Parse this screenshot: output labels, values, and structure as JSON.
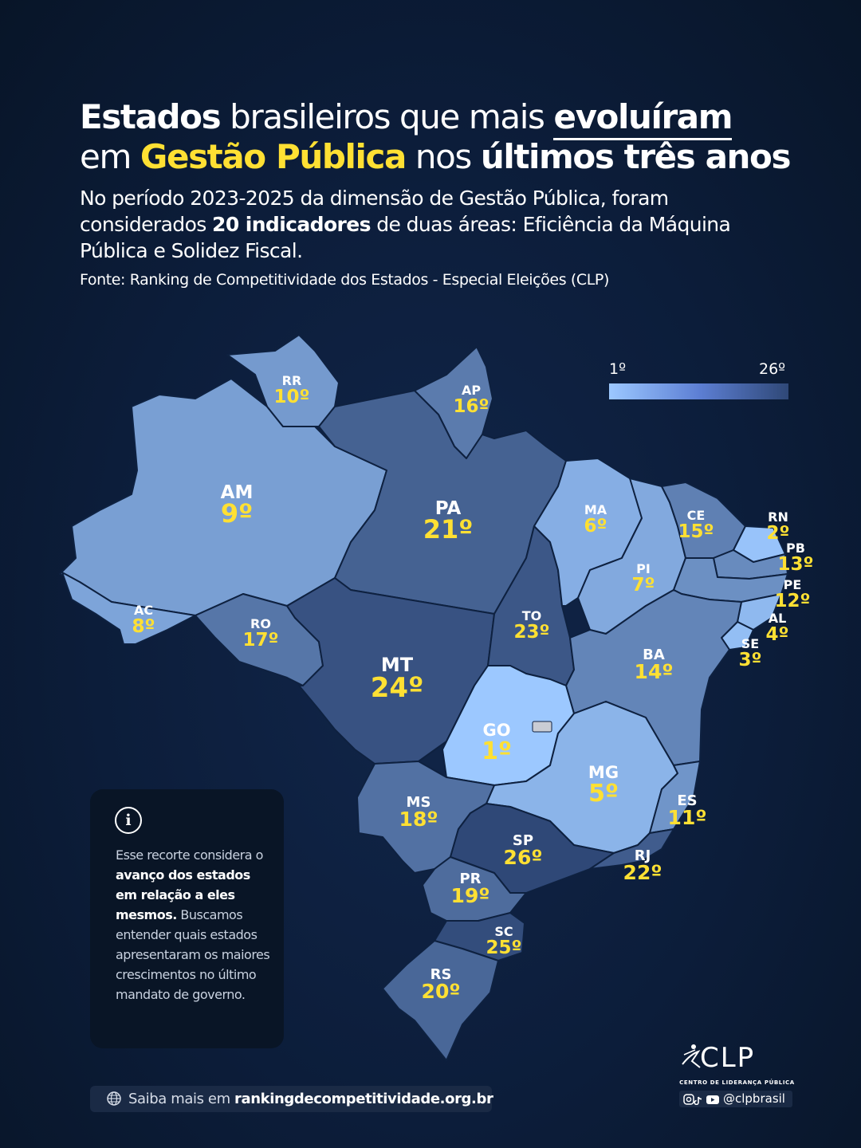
{
  "title": {
    "w1": "Estados",
    "w2": " brasileiros que mais ",
    "w3": "evoluíram",
    "w4": "em ",
    "w5": "Gestão Pública",
    "w6": " nos ",
    "w7": "últimos três anos"
  },
  "subtitle": {
    "p1": "No período 2023-2025 da dimensão de Gestão Pública, foram considerados ",
    "p2": "20 indicadores",
    "p3": " de duas áreas: Eficiência da Máquina Pública e Solidez Fiscal."
  },
  "source": "Fonte: Ranking de Competitividade dos Estados - Especial Eleições (CLP)",
  "legend": {
    "min_label": "1º",
    "max_label": "26º",
    "color_low": "#9cc8ff",
    "color_high": "#2f4877"
  },
  "states": [
    {
      "abbr": "RR",
      "rank": "10º",
      "rank_value": 10
    },
    {
      "abbr": "AP",
      "rank": "16º",
      "rank_value": 16
    },
    {
      "abbr": "AM",
      "rank": "9º",
      "rank_value": 9
    },
    {
      "abbr": "PA",
      "rank": "21º",
      "rank_value": 21
    },
    {
      "abbr": "MA",
      "rank": "6º",
      "rank_value": 6
    },
    {
      "abbr": "CE",
      "rank": "15º",
      "rank_value": 15
    },
    {
      "abbr": "RN",
      "rank": "2º",
      "rank_value": 2
    },
    {
      "abbr": "PB",
      "rank": "13º",
      "rank_value": 13
    },
    {
      "abbr": "PE",
      "rank": "12º",
      "rank_value": 12
    },
    {
      "abbr": "AL",
      "rank": "4º",
      "rank_value": 4
    },
    {
      "abbr": "SE",
      "rank": "3º",
      "rank_value": 3
    },
    {
      "abbr": "PI",
      "rank": "7º",
      "rank_value": 7
    },
    {
      "abbr": "AC",
      "rank": "8º",
      "rank_value": 8
    },
    {
      "abbr": "RO",
      "rank": "17º",
      "rank_value": 17
    },
    {
      "abbr": "TO",
      "rank": "23º",
      "rank_value": 23
    },
    {
      "abbr": "MT",
      "rank": "24º",
      "rank_value": 24
    },
    {
      "abbr": "BA",
      "rank": "14º",
      "rank_value": 14
    },
    {
      "abbr": "GO",
      "rank": "1º",
      "rank_value": 1
    },
    {
      "abbr": "MG",
      "rank": "5º",
      "rank_value": 5
    },
    {
      "abbr": "ES",
      "rank": "11º",
      "rank_value": 11
    },
    {
      "abbr": "MS",
      "rank": "18º",
      "rank_value": 18
    },
    {
      "abbr": "SP",
      "rank": "26º",
      "rank_value": 26
    },
    {
      "abbr": "RJ",
      "rank": "22º",
      "rank_value": 22
    },
    {
      "abbr": "PR",
      "rank": "19º",
      "rank_value": 19
    },
    {
      "abbr": "SC",
      "rank": "25º",
      "rank_value": 25
    },
    {
      "abbr": "RS",
      "rank": "20º",
      "rank_value": 20
    }
  ],
  "info": {
    "icon": "info-icon",
    "t1": "Esse recorte considera o ",
    "t2": "avanço dos estados em relação a eles mesmos.",
    "t3": " Buscamos entender quais estados apresentaram os maiores crescimentos no último mandato de governo."
  },
  "footer": {
    "icon": "globe-icon",
    "prefix": "Saiba mais em ",
    "url": "rankingdecompetitividade.org.br"
  },
  "logo": {
    "name": "CLP",
    "subtitle": "CENTRO DE LIDERANÇA PÚBLICA",
    "handle": "@clpbrasil",
    "social_icons": [
      "instagram-icon",
      "tiktok-icon",
      "youtube-icon"
    ]
  }
}
